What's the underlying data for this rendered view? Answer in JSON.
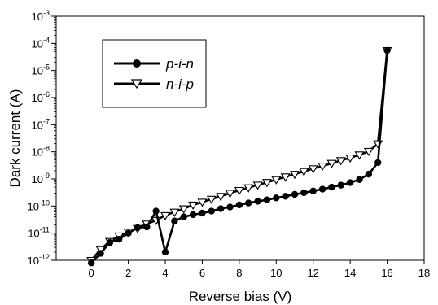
{
  "chart_data": {
    "type": "line",
    "xlabel": "Reverse bias (V)",
    "ylabel": "Dark current (A)",
    "xlim": [
      -1.9,
      18
    ],
    "ylim": [
      1e-12,
      0.001
    ],
    "yscale": "log",
    "x_ticks": [
      0,
      2,
      4,
      6,
      8,
      10,
      12,
      14,
      16,
      18
    ],
    "y_ticks": [
      {
        "base": "10",
        "exp": "-12",
        "value": 1e-12
      },
      {
        "base": "10",
        "exp": "-11",
        "value": 1e-11
      },
      {
        "base": "10",
        "exp": "-10",
        "value": 1e-10
      },
      {
        "base": "10",
        "exp": "-9",
        "value": 1e-09
      },
      {
        "base": "10",
        "exp": "-8",
        "value": 1e-08
      },
      {
        "base": "10",
        "exp": "-7",
        "value": 1e-07
      },
      {
        "base": "10",
        "exp": "-6",
        "value": 1e-06
      },
      {
        "base": "10",
        "exp": "-5",
        "value": 1e-05
      },
      {
        "base": "10",
        "exp": "-4",
        "value": 0.0001
      },
      {
        "base": "10",
        "exp": "-3",
        "value": 0.001
      }
    ],
    "grid": false,
    "legend_position": "top-left",
    "series": [
      {
        "name": "p-i-n",
        "marker": "filled-circle",
        "color": "#000000",
        "x": [
          0,
          0.5,
          1,
          1.5,
          2,
          2.5,
          3,
          3.5,
          4,
          4.5,
          5,
          5.5,
          6,
          6.5,
          7,
          7.5,
          8,
          8.5,
          9,
          9.5,
          10,
          10.5,
          11,
          11.5,
          12,
          12.5,
          13,
          13.5,
          14,
          14.5,
          15,
          15.5,
          16
        ],
        "y": [
          8e-13,
          1.8e-12,
          4.5e-12,
          6e-12,
          1e-11,
          1.6e-11,
          1.7e-11,
          6.5e-11,
          2e-12,
          2.8e-11,
          4e-11,
          4.8e-11,
          5.5e-11,
          6.5e-11,
          8e-11,
          9.2e-11,
          1.1e-10,
          1.3e-10,
          1.5e-10,
          1.7e-10,
          2e-10,
          2.3e-10,
          2.7e-10,
          3.1e-10,
          3.6e-10,
          4.2e-10,
          5e-10,
          5.9e-10,
          7.3e-10,
          9.5e-10,
          1.5e-09,
          4e-09,
          5.5e-05
        ]
      },
      {
        "name": "n-i-p",
        "marker": "open-triangle-down",
        "color": "#000000",
        "x": [
          0,
          0.5,
          1,
          1.5,
          2,
          2.5,
          3,
          3.5,
          4,
          4.5,
          5,
          5.5,
          6,
          6.5,
          7,
          7.5,
          8,
          8.5,
          9,
          9.5,
          10,
          10.5,
          11,
          11.5,
          12,
          12.5,
          13,
          13.5,
          14,
          14.5,
          15,
          15.5,
          16
        ],
        "y": [
          1e-12,
          2.5e-12,
          5e-12,
          8e-12,
          1.1e-11,
          1.5e-11,
          2.2e-11,
          3e-11,
          4.5e-11,
          6e-11,
          8e-11,
          1.1e-10,
          1.4e-10,
          1.8e-10,
          2.3e-10,
          3e-10,
          3.8e-10,
          4.8e-10,
          6e-10,
          7.5e-10,
          9.5e-10,
          1.2e-09,
          1.5e-09,
          1.9e-09,
          2.4e-09,
          3e-09,
          3.8e-09,
          4.8e-09,
          6e-09,
          7.8e-09,
          1.05e-08,
          2e-08,
          5.5e-05
        ]
      }
    ]
  }
}
